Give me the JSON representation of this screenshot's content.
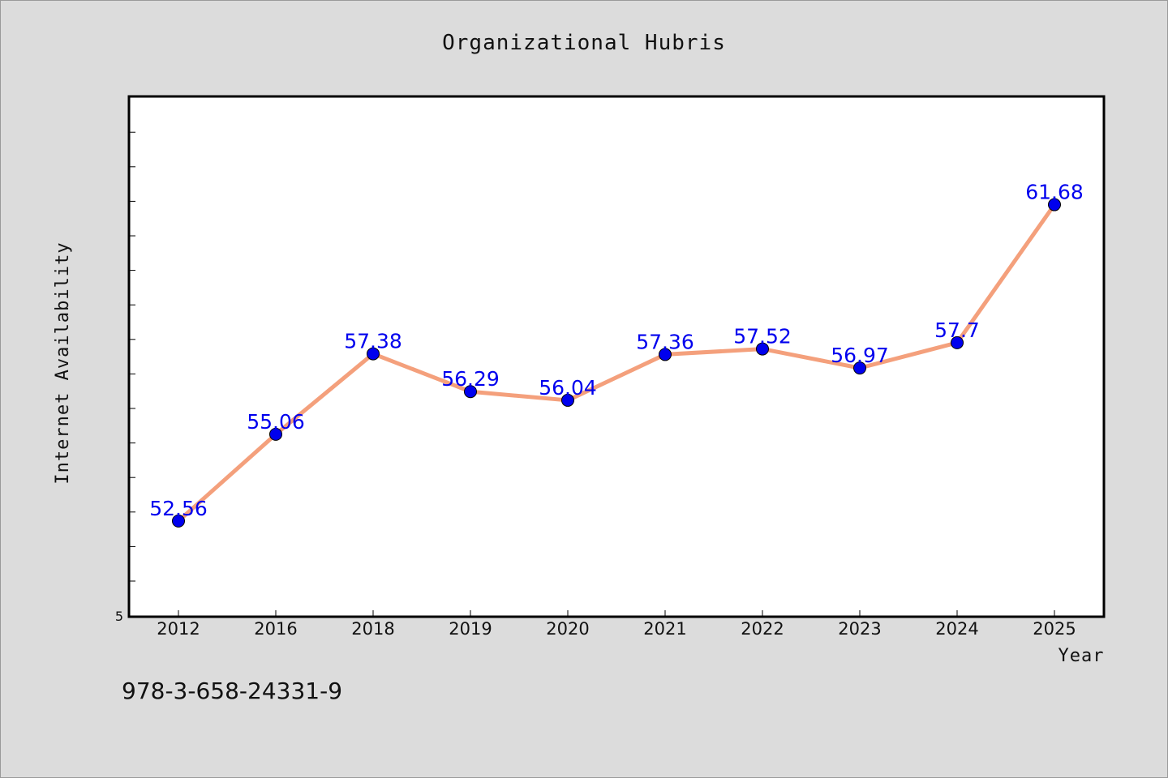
{
  "chart_data": {
    "type": "line",
    "title": "Organizational Hubris",
    "xlabel": "Year",
    "ylabel": "Internet Availability",
    "categories": [
      "2012",
      "2016",
      "2018",
      "2019",
      "2020",
      "2021",
      "2022",
      "2023",
      "2024",
      "2025"
    ],
    "series": [
      {
        "values": [
          52.56,
          55.06,
          57.38,
          56.29,
          56.04,
          57.36,
          57.52,
          56.97,
          57.7,
          61.68
        ],
        "labels": [
          "52.56",
          "55.06",
          "57.38",
          "56.29",
          "56.04",
          "57.36",
          "57.52",
          "56.97",
          "57.7",
          "61.68"
        ]
      }
    ],
    "ylim": [
      49.8,
      64.8
    ],
    "y_min_label": "5",
    "grid": false,
    "line_color": "#f4a07c",
    "marker_color": "#0000ee"
  },
  "footer": {
    "code": "978-3-658-24331-9"
  }
}
